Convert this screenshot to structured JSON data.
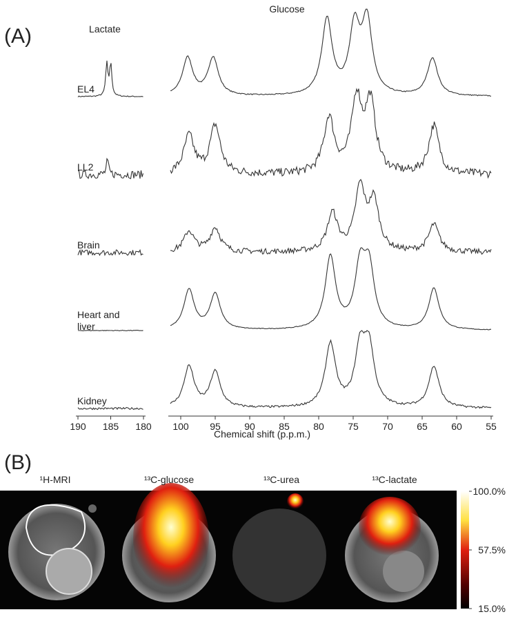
{
  "panel_a": {
    "label": "(A)",
    "regions": [
      {
        "title": "Lactate",
        "xlim": [
          190,
          180
        ],
        "xticks": [
          190,
          185,
          180
        ]
      },
      {
        "title": "Glucose",
        "xlim": [
          101.5,
          55
        ],
        "xticks": [
          100,
          95,
          90,
          85,
          80,
          75,
          70,
          65,
          60,
          55
        ]
      }
    ],
    "x_label": "Chemical shift (p.p.m.)",
    "series": [
      {
        "name": "EL4",
        "noise": 1.5,
        "peaks": [
          {
            "ppm": 185.6,
            "height": 47
          },
          {
            "ppm": 185.0,
            "height": 47
          },
          {
            "ppm": 99.0,
            "height": 55
          },
          {
            "ppm": 95.3,
            "height": 55
          },
          {
            "ppm": 78.8,
            "height": 110
          },
          {
            "ppm": 74.8,
            "height": 95
          },
          {
            "ppm": 73.0,
            "height": 105
          },
          {
            "ppm": 63.5,
            "height": 55
          }
        ]
      },
      {
        "name": "LL2",
        "noise": 12,
        "peaks": [
          {
            "ppm": 185.5,
            "height": 20
          },
          {
            "ppm": 98.8,
            "height": 55
          },
          {
            "ppm": 95.0,
            "height": 70
          },
          {
            "ppm": 78.5,
            "height": 80
          },
          {
            "ppm": 74.5,
            "height": 105
          },
          {
            "ppm": 72.5,
            "height": 100
          },
          {
            "ppm": 63.3,
            "height": 70
          }
        ]
      },
      {
        "name": "Brain",
        "noise": 8,
        "peaks": [
          {
            "ppm": 98.8,
            "height": 30
          },
          {
            "ppm": 95.0,
            "height": 35
          },
          {
            "ppm": 78.0,
            "height": 55
          },
          {
            "ppm": 74.0,
            "height": 90
          },
          {
            "ppm": 72.0,
            "height": 70
          },
          {
            "ppm": 63.3,
            "height": 40
          }
        ]
      },
      {
        "name": "Heart and\nliver",
        "noise": 1,
        "peaks": [
          {
            "ppm": 98.8,
            "height": 58
          },
          {
            "ppm": 95.0,
            "height": 52
          },
          {
            "ppm": 78.3,
            "height": 105
          },
          {
            "ppm": 74.0,
            "height": 85
          },
          {
            "ppm": 72.7,
            "height": 85
          },
          {
            "ppm": 63.3,
            "height": 60
          }
        ]
      },
      {
        "name": "Kidney",
        "noise": 3,
        "peaks": [
          {
            "ppm": 98.8,
            "height": 60
          },
          {
            "ppm": 95.0,
            "height": 52
          },
          {
            "ppm": 78.3,
            "height": 92
          },
          {
            "ppm": 74.0,
            "height": 80
          },
          {
            "ppm": 72.7,
            "height": 82
          },
          {
            "ppm": 63.3,
            "height": 60
          }
        ]
      }
    ]
  },
  "panel_b": {
    "label": "(B)",
    "images": [
      "¹H-MRI",
      "¹³C-glucose",
      "¹³C-urea",
      "¹³C-lactate"
    ],
    "colorbar_lim": [
      15,
      100
    ],
    "colorbar_ticks": [
      {
        "value": 100,
        "label": "100.0%"
      },
      {
        "value": 57.5,
        "label": "57.5%"
      },
      {
        "value": 15,
        "label": "15.0%"
      }
    ]
  }
}
